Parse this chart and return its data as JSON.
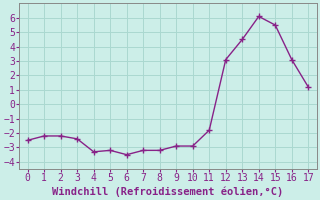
{
  "x": [
    0,
    1,
    2,
    3,
    4,
    5,
    6,
    7,
    8,
    9,
    10,
    11,
    12,
    13,
    14,
    15,
    16,
    17
  ],
  "y": [
    -2.5,
    -2.2,
    -2.2,
    -2.4,
    -3.3,
    -3.2,
    -3.5,
    -3.2,
    -3.2,
    -2.9,
    -2.9,
    -1.8,
    3.1,
    4.5,
    6.1,
    5.5,
    3.1,
    1.2
  ],
  "line_color": "#882288",
  "marker_color": "#882288",
  "bg_color": "#cceee8",
  "grid_color": "#aad8d0",
  "xlabel": "Windchill (Refroidissement éolien,°C)",
  "xlim": [
    -0.5,
    17.5
  ],
  "ylim": [
    -4.5,
    7.0
  ],
  "xticks": [
    0,
    1,
    2,
    3,
    4,
    5,
    6,
    7,
    8,
    9,
    10,
    11,
    12,
    13,
    14,
    15,
    16,
    17
  ],
  "yticks": [
    -4,
    -3,
    -2,
    -1,
    0,
    1,
    2,
    3,
    4,
    5,
    6
  ],
  "xlabel_fontsize": 7.5,
  "tick_fontsize": 7,
  "line_width": 1.0,
  "marker_size": 2.5,
  "tick_color": "#882288",
  "label_color": "#882288"
}
